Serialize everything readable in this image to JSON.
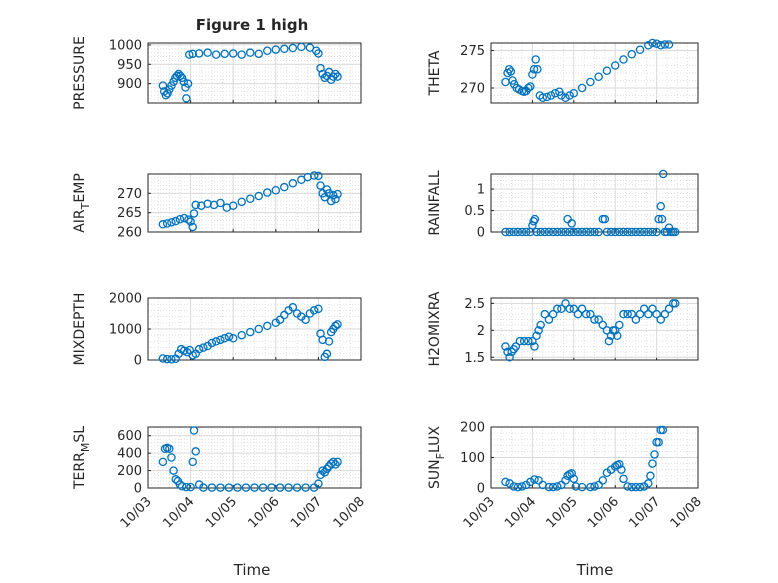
{
  "figure_title": "Figure 1 high",
  "colors": {
    "marker": "#0072BD",
    "axis": "#262626",
    "grid": "#d9d9d9"
  },
  "x_ticks": [
    "10/03",
    "10/04",
    "10/05",
    "10/06",
    "10/07",
    "10/08"
  ],
  "x_label": "Time",
  "chart_data": [
    {
      "type": "scatter",
      "ylabel_main": "PRESSURE",
      "ylabel_sub": "",
      "ylim": [
        850,
        1005
      ],
      "yticks": [
        900,
        950,
        1000
      ],
      "points": [
        [
          3.35,
          895
        ],
        [
          3.38,
          880
        ],
        [
          3.42,
          870
        ],
        [
          3.46,
          875
        ],
        [
          3.5,
          885
        ],
        [
          3.55,
          895
        ],
        [
          3.6,
          905
        ],
        [
          3.64,
          915
        ],
        [
          3.68,
          920
        ],
        [
          3.72,
          925
        ],
        [
          3.76,
          920
        ],
        [
          3.8,
          915
        ],
        [
          3.84,
          905
        ],
        [
          3.88,
          890
        ],
        [
          3.9,
          862
        ],
        [
          3.94,
          900
        ],
        [
          3.97,
          975
        ],
        [
          4.05,
          977
        ],
        [
          4.2,
          978
        ],
        [
          4.4,
          980
        ],
        [
          4.6,
          975
        ],
        [
          4.8,
          977
        ],
        [
          5.0,
          978
        ],
        [
          5.2,
          975
        ],
        [
          5.4,
          980
        ],
        [
          5.6,
          977
        ],
        [
          5.8,
          985
        ],
        [
          6.0,
          988
        ],
        [
          6.2,
          990
        ],
        [
          6.4,
          992
        ],
        [
          6.6,
          995
        ],
        [
          6.8,
          993
        ],
        [
          6.95,
          985
        ],
        [
          7.0,
          978
        ],
        [
          7.05,
          940
        ],
        [
          7.1,
          925
        ],
        [
          7.15,
          915
        ],
        [
          7.2,
          920
        ],
        [
          7.25,
          930
        ],
        [
          7.3,
          910
        ],
        [
          7.35,
          918
        ],
        [
          7.4,
          925
        ],
        [
          7.45,
          918
        ]
      ]
    },
    {
      "type": "scatter",
      "ylabel_main": "THETA",
      "ylabel_sub": "",
      "ylim": [
        268,
        276
      ],
      "yticks": [
        270,
        275
      ],
      "points": [
        [
          3.35,
          270.8
        ],
        [
          3.4,
          272
        ],
        [
          3.44,
          272.5
        ],
        [
          3.48,
          272.2
        ],
        [
          3.52,
          271
        ],
        [
          3.56,
          270.5
        ],
        [
          3.62,
          270
        ],
        [
          3.68,
          269.8
        ],
        [
          3.75,
          269.6
        ],
        [
          3.8,
          269.5
        ],
        [
          3.85,
          269.6
        ],
        [
          3.9,
          270
        ],
        [
          3.95,
          270.2
        ],
        [
          4.0,
          271.8
        ],
        [
          4.04,
          272.5
        ],
        [
          4.08,
          273.8
        ],
        [
          4.12,
          272.5
        ],
        [
          4.18,
          269
        ],
        [
          4.25,
          268.7
        ],
        [
          4.35,
          268.8
        ],
        [
          4.45,
          269
        ],
        [
          4.55,
          269.3
        ],
        [
          4.65,
          269.5
        ],
        [
          4.7,
          269
        ],
        [
          4.8,
          268.7
        ],
        [
          4.9,
          269
        ],
        [
          5.0,
          269.3
        ],
        [
          5.2,
          270
        ],
        [
          5.4,
          270.8
        ],
        [
          5.6,
          271.5
        ],
        [
          5.8,
          272.3
        ],
        [
          6.0,
          273
        ],
        [
          6.2,
          273.8
        ],
        [
          6.4,
          274.5
        ],
        [
          6.6,
          275.1
        ],
        [
          6.8,
          275.7
        ],
        [
          6.9,
          276
        ],
        [
          7.0,
          275.9
        ],
        [
          7.1,
          275.7
        ],
        [
          7.2,
          275.8
        ],
        [
          7.3,
          275.8
        ]
      ]
    },
    {
      "type": "scatter",
      "ylabel_main": "AIR",
      "ylabel_sub": "T",
      "ylabel_tail": "EMP",
      "ylim": [
        260,
        275
      ],
      "yticks": [
        260,
        265,
        270
      ],
      "points": [
        [
          3.35,
          262
        ],
        [
          3.45,
          262.2
        ],
        [
          3.55,
          262.5
        ],
        [
          3.65,
          262.8
        ],
        [
          3.75,
          263.3
        ],
        [
          3.85,
          263.6
        ],
        [
          3.95,
          263.2
        ],
        [
          4.0,
          262.7
        ],
        [
          4.05,
          261.3
        ],
        [
          4.08,
          264.8
        ],
        [
          4.12,
          267
        ],
        [
          4.25,
          266.8
        ],
        [
          4.4,
          267.3
        ],
        [
          4.55,
          267
        ],
        [
          4.7,
          267.5
        ],
        [
          4.85,
          266.3
        ],
        [
          5.0,
          266.8
        ],
        [
          5.2,
          267.8
        ],
        [
          5.4,
          268.6
        ],
        [
          5.6,
          269.3
        ],
        [
          5.8,
          270.2
        ],
        [
          6.0,
          270.8
        ],
        [
          6.2,
          271.6
        ],
        [
          6.4,
          272.6
        ],
        [
          6.6,
          273.5
        ],
        [
          6.75,
          274.2
        ],
        [
          6.9,
          274.6
        ],
        [
          7.0,
          274.5
        ],
        [
          7.05,
          272
        ],
        [
          7.1,
          270
        ],
        [
          7.15,
          269
        ],
        [
          7.2,
          271
        ],
        [
          7.25,
          270
        ],
        [
          7.3,
          268
        ],
        [
          7.35,
          269.5
        ],
        [
          7.4,
          268.5
        ],
        [
          7.45,
          269.8
        ]
      ]
    },
    {
      "type": "scatter",
      "ylabel_main": "RAINFALL",
      "ylabel_sub": "",
      "ylim": [
        0,
        1.35
      ],
      "yticks": [
        0,
        0.5,
        1
      ],
      "points": [
        [
          3.35,
          0
        ],
        [
          3.45,
          0
        ],
        [
          3.55,
          0
        ],
        [
          3.65,
          0
        ],
        [
          3.75,
          0
        ],
        [
          3.85,
          0
        ],
        [
          3.95,
          0
        ],
        [
          4.0,
          0.15
        ],
        [
          4.03,
          0.25
        ],
        [
          4.06,
          0.3
        ],
        [
          4.1,
          0
        ],
        [
          4.2,
          0
        ],
        [
          4.3,
          0
        ],
        [
          4.4,
          0
        ],
        [
          4.5,
          0
        ],
        [
          4.6,
          0
        ],
        [
          4.7,
          0
        ],
        [
          4.8,
          0
        ],
        [
          4.85,
          0.3
        ],
        [
          4.9,
          0
        ],
        [
          4.95,
          0.2
        ],
        [
          5.0,
          0
        ],
        [
          5.1,
          0
        ],
        [
          5.2,
          0
        ],
        [
          5.3,
          0
        ],
        [
          5.4,
          0
        ],
        [
          5.5,
          0
        ],
        [
          5.6,
          0
        ],
        [
          5.7,
          0.3
        ],
        [
          5.75,
          0.3
        ],
        [
          5.8,
          0
        ],
        [
          5.9,
          0
        ],
        [
          6.0,
          0
        ],
        [
          6.1,
          0
        ],
        [
          6.2,
          0
        ],
        [
          6.3,
          0
        ],
        [
          6.4,
          0
        ],
        [
          6.5,
          0
        ],
        [
          6.6,
          0
        ],
        [
          6.7,
          0
        ],
        [
          6.8,
          0
        ],
        [
          6.9,
          0
        ],
        [
          7.0,
          0
        ],
        [
          7.05,
          0.3
        ],
        [
          7.1,
          0.6
        ],
        [
          7.13,
          0.3
        ],
        [
          7.16,
          1.35
        ],
        [
          7.2,
          0
        ],
        [
          7.25,
          0
        ],
        [
          7.3,
          0.1
        ],
        [
          7.35,
          0
        ],
        [
          7.4,
          0
        ],
        [
          7.45,
          0
        ]
      ]
    },
    {
      "type": "scatter",
      "ylabel_main": "MIXDEPTH",
      "ylabel_sub": "",
      "ylim": [
        0,
        2000
      ],
      "yticks": [
        0,
        1000,
        2000
      ],
      "points": [
        [
          3.35,
          50
        ],
        [
          3.45,
          30
        ],
        [
          3.55,
          20
        ],
        [
          3.65,
          40
        ],
        [
          3.72,
          200
        ],
        [
          3.78,
          350
        ],
        [
          3.85,
          300
        ],
        [
          3.92,
          250
        ],
        [
          3.98,
          320
        ],
        [
          4.05,
          150
        ],
        [
          4.12,
          200
        ],
        [
          4.2,
          350
        ],
        [
          4.3,
          400
        ],
        [
          4.4,
          450
        ],
        [
          4.5,
          550
        ],
        [
          4.6,
          600
        ],
        [
          4.7,
          650
        ],
        [
          4.8,
          700
        ],
        [
          4.9,
          750
        ],
        [
          5.0,
          700
        ],
        [
          5.2,
          800
        ],
        [
          5.4,
          900
        ],
        [
          5.6,
          1000
        ],
        [
          5.8,
          1100
        ],
        [
          6.0,
          1200
        ],
        [
          6.1,
          1300
        ],
        [
          6.2,
          1450
        ],
        [
          6.3,
          1600
        ],
        [
          6.4,
          1700
        ],
        [
          6.5,
          1500
        ],
        [
          6.6,
          1400
        ],
        [
          6.7,
          1300
        ],
        [
          6.8,
          1500
        ],
        [
          6.9,
          1600
        ],
        [
          7.0,
          1650
        ],
        [
          7.05,
          850
        ],
        [
          7.1,
          650
        ],
        [
          7.15,
          100
        ],
        [
          7.2,
          200
        ],
        [
          7.25,
          600
        ],
        [
          7.3,
          900
        ],
        [
          7.35,
          1000
        ],
        [
          7.4,
          1100
        ],
        [
          7.45,
          1150
        ]
      ]
    },
    {
      "type": "scatter",
      "ylabel_main": "H2OMIXRA",
      "ylabel_sub": "",
      "ylim": [
        1.45,
        2.6
      ],
      "yticks": [
        1.5,
        2,
        2.5
      ],
      "points": [
        [
          3.35,
          1.7
        ],
        [
          3.4,
          1.6
        ],
        [
          3.45,
          1.5
        ],
        [
          3.5,
          1.6
        ],
        [
          3.55,
          1.65
        ],
        [
          3.6,
          1.7
        ],
        [
          3.7,
          1.8
        ],
        [
          3.8,
          1.8
        ],
        [
          3.9,
          1.8
        ],
        [
          4.0,
          1.8
        ],
        [
          4.05,
          1.7
        ],
        [
          4.1,
          1.9
        ],
        [
          4.15,
          2.0
        ],
        [
          4.2,
          2.1
        ],
        [
          4.3,
          2.3
        ],
        [
          4.4,
          2.2
        ],
        [
          4.5,
          2.3
        ],
        [
          4.6,
          2.4
        ],
        [
          4.7,
          2.4
        ],
        [
          4.8,
          2.5
        ],
        [
          4.9,
          2.4
        ],
        [
          5.0,
          2.4
        ],
        [
          5.1,
          2.3
        ],
        [
          5.2,
          2.4
        ],
        [
          5.3,
          2.3
        ],
        [
          5.4,
          2.3
        ],
        [
          5.5,
          2.2
        ],
        [
          5.6,
          2.2
        ],
        [
          5.7,
          2.1
        ],
        [
          5.8,
          2.0
        ],
        [
          5.85,
          1.8
        ],
        [
          5.9,
          1.9
        ],
        [
          5.95,
          2.0
        ],
        [
          6.0,
          2.0
        ],
        [
          6.05,
          1.9
        ],
        [
          6.1,
          2.1
        ],
        [
          6.2,
          2.3
        ],
        [
          6.3,
          2.3
        ],
        [
          6.4,
          2.3
        ],
        [
          6.5,
          2.2
        ],
        [
          6.6,
          2.3
        ],
        [
          6.7,
          2.4
        ],
        [
          6.8,
          2.3
        ],
        [
          6.9,
          2.4
        ],
        [
          7.0,
          2.3
        ],
        [
          7.1,
          2.2
        ],
        [
          7.2,
          2.3
        ],
        [
          7.3,
          2.4
        ],
        [
          7.4,
          2.5
        ],
        [
          7.45,
          2.5
        ]
      ]
    },
    {
      "type": "scatter",
      "ylabel_main": "TERR",
      "ylabel_sub": "M",
      "ylabel_tail": "SL",
      "ylim": [
        0,
        700
      ],
      "yticks": [
        0,
        200,
        400,
        600
      ],
      "points": [
        [
          3.35,
          300
        ],
        [
          3.4,
          450
        ],
        [
          3.45,
          460
        ],
        [
          3.5,
          450
        ],
        [
          3.55,
          350
        ],
        [
          3.6,
          200
        ],
        [
          3.65,
          100
        ],
        [
          3.7,
          80
        ],
        [
          3.75,
          40
        ],
        [
          3.8,
          20
        ],
        [
          3.9,
          10
        ],
        [
          4.0,
          10
        ],
        [
          4.05,
          300
        ],
        [
          4.08,
          660
        ],
        [
          4.12,
          420
        ],
        [
          4.2,
          40
        ],
        [
          4.3,
          5
        ],
        [
          4.5,
          5
        ],
        [
          4.7,
          5
        ],
        [
          4.9,
          5
        ],
        [
          5.1,
          5
        ],
        [
          5.3,
          5
        ],
        [
          5.5,
          5
        ],
        [
          5.7,
          5
        ],
        [
          5.9,
          5
        ],
        [
          6.1,
          5
        ],
        [
          6.3,
          5
        ],
        [
          6.5,
          5
        ],
        [
          6.7,
          5
        ],
        [
          6.9,
          5
        ],
        [
          7.0,
          50
        ],
        [
          7.05,
          150
        ],
        [
          7.1,
          200
        ],
        [
          7.15,
          180
        ],
        [
          7.2,
          220
        ],
        [
          7.25,
          250
        ],
        [
          7.3,
          280
        ],
        [
          7.35,
          300
        ],
        [
          7.4,
          270
        ],
        [
          7.45,
          300
        ]
      ]
    },
    {
      "type": "scatter",
      "ylabel_main": "SUN",
      "ylabel_sub": "F",
      "ylabel_tail": "LUX",
      "ylim": [
        0,
        200
      ],
      "yticks": [
        0,
        100,
        200
      ],
      "points": [
        [
          3.35,
          20
        ],
        [
          3.45,
          15
        ],
        [
          3.55,
          5
        ],
        [
          3.65,
          3
        ],
        [
          3.75,
          5
        ],
        [
          3.85,
          10
        ],
        [
          3.95,
          20
        ],
        [
          4.05,
          28
        ],
        [
          4.15,
          25
        ],
        [
          4.25,
          10
        ],
        [
          4.4,
          3
        ],
        [
          4.5,
          3
        ],
        [
          4.6,
          5
        ],
        [
          4.7,
          10
        ],
        [
          4.8,
          25
        ],
        [
          4.85,
          40
        ],
        [
          4.9,
          45
        ],
        [
          4.95,
          48
        ],
        [
          5.0,
          30
        ],
        [
          5.05,
          5
        ],
        [
          5.2,
          3
        ],
        [
          5.4,
          3
        ],
        [
          5.5,
          5
        ],
        [
          5.6,
          10
        ],
        [
          5.7,
          25
        ],
        [
          5.8,
          50
        ],
        [
          5.9,
          60
        ],
        [
          6.0,
          70
        ],
        [
          6.05,
          75
        ],
        [
          6.1,
          78
        ],
        [
          6.15,
          60
        ],
        [
          6.2,
          30
        ],
        [
          6.3,
          5
        ],
        [
          6.4,
          3
        ],
        [
          6.5,
          3
        ],
        [
          6.6,
          3
        ],
        [
          6.7,
          5
        ],
        [
          6.8,
          15
        ],
        [
          6.85,
          40
        ],
        [
          6.9,
          80
        ],
        [
          6.95,
          110
        ],
        [
          7.0,
          150
        ],
        [
          7.05,
          150
        ],
        [
          7.1,
          190
        ],
        [
          7.15,
          190
        ]
      ]
    }
  ]
}
